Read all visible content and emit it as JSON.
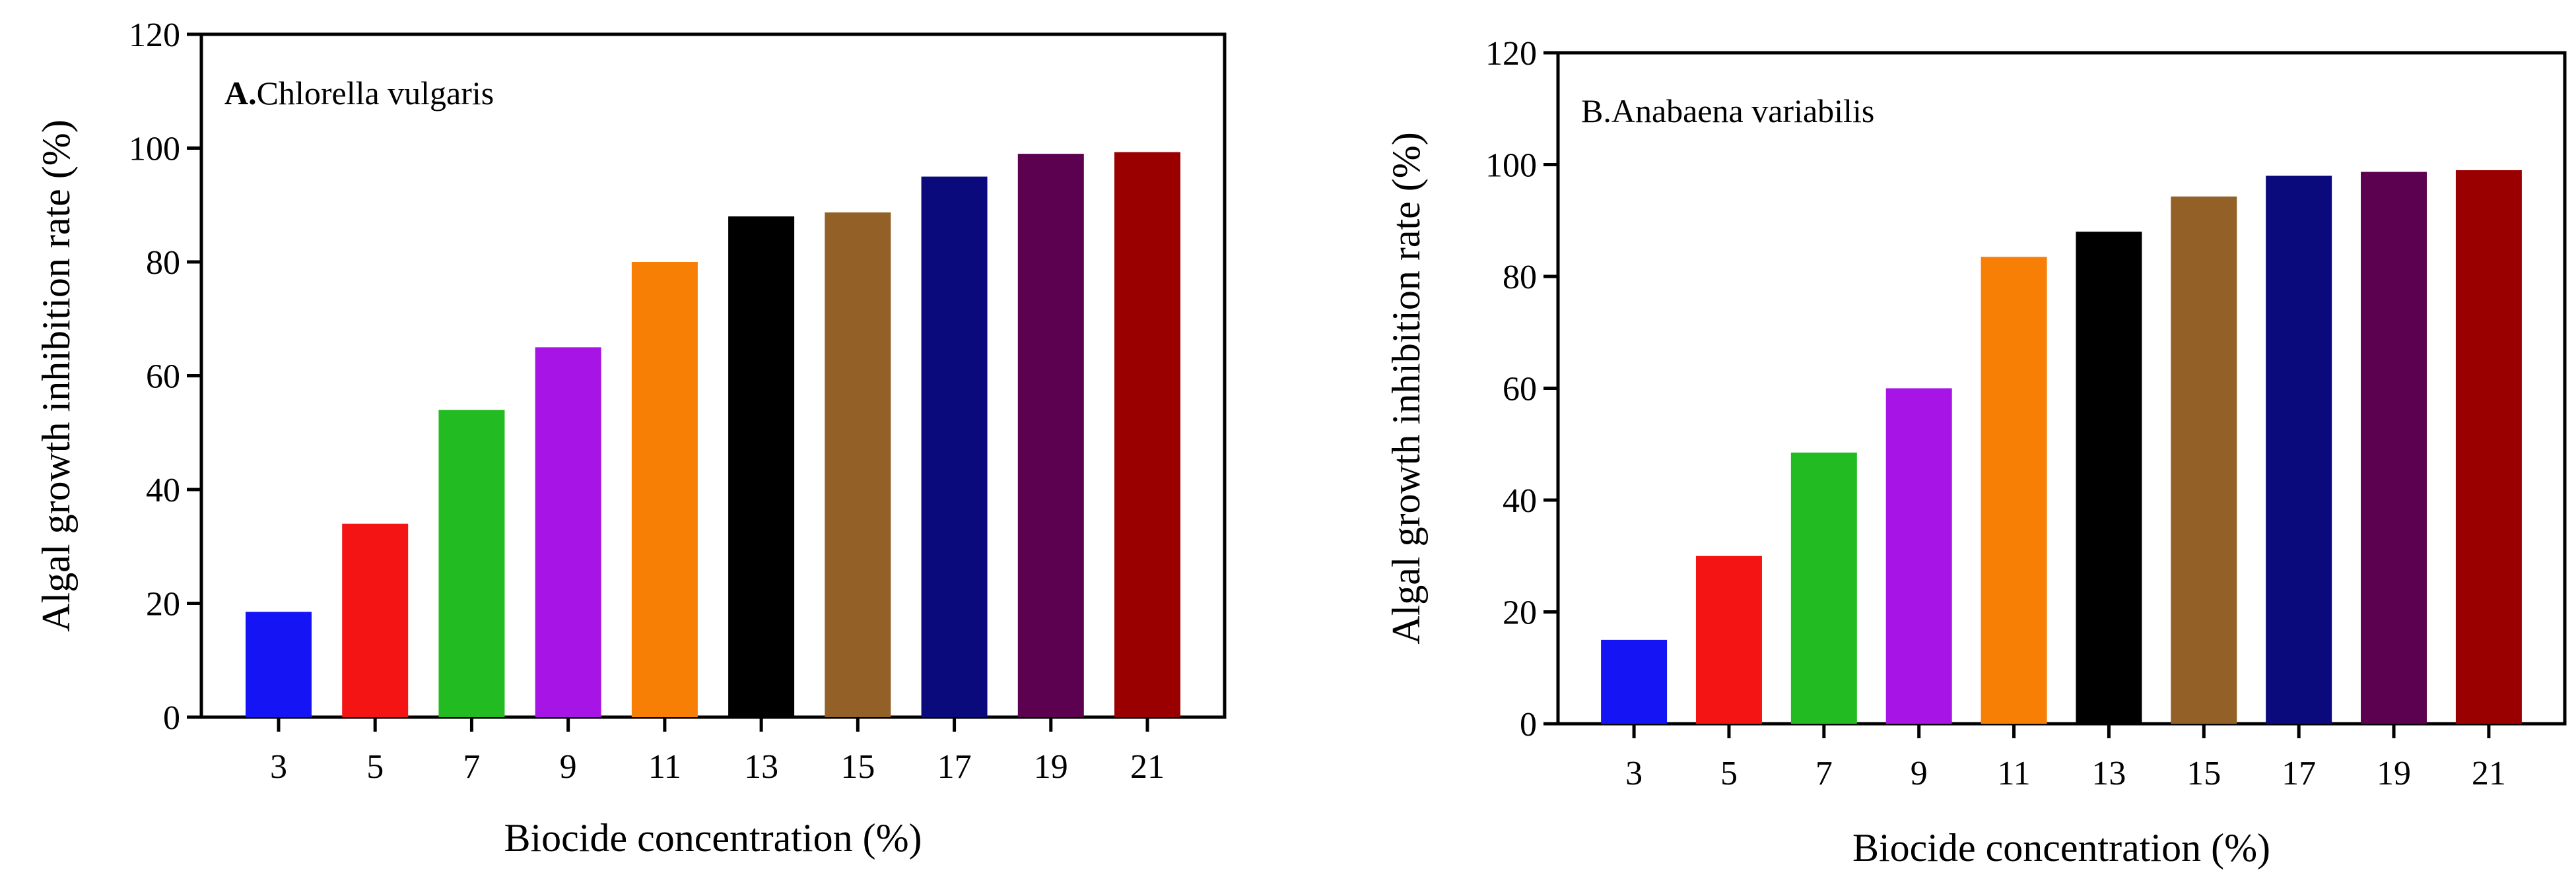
{
  "chart_data": [
    {
      "type": "bar",
      "panel_label": "A.",
      "title": "Chlorella vulgaris",
      "xlabel": "Biocide concentration (%)",
      "ylabel": "Algal growth inhibition rate (%)",
      "ylim": [
        0,
        120
      ],
      "yticks": [
        "0",
        "20",
        "40",
        "60",
        "80",
        "100",
        "120"
      ],
      "categories": [
        "3",
        "5",
        "7",
        "9",
        "11",
        "13",
        "15",
        "17",
        "19",
        "21"
      ],
      "values": [
        18.5,
        34,
        54,
        65,
        80,
        88,
        88.7,
        95,
        99,
        99.3
      ],
      "colors": [
        "#1414f5",
        "#f41414",
        "#22bb22",
        "#a614e6",
        "#f77f05",
        "#000000",
        "#936128",
        "#0a0a7d",
        "#5c0050",
        "#9b0000"
      ],
      "grid": false
    },
    {
      "type": "bar",
      "panel_label": "B.",
      "title": "Anabaena variabilis",
      "xlabel": "Biocide concentration (%)",
      "ylabel": "Algal growth inhibition rate (%)",
      "ylim": [
        0,
        120
      ],
      "yticks": [
        "0",
        "20",
        "40",
        "60",
        "80",
        "100",
        "120"
      ],
      "categories": [
        "3",
        "5",
        "7",
        "9",
        "11",
        "13",
        "15",
        "17",
        "19",
        "21"
      ],
      "values": [
        15,
        30,
        48.5,
        60,
        83.5,
        88,
        94.3,
        98,
        98.7,
        99
      ],
      "colors": [
        "#1414f5",
        "#f41414",
        "#22bb22",
        "#a614e6",
        "#f77f05",
        "#000000",
        "#936128",
        "#0a0a7d",
        "#5c0050",
        "#9b0000"
      ],
      "grid": false
    }
  ]
}
